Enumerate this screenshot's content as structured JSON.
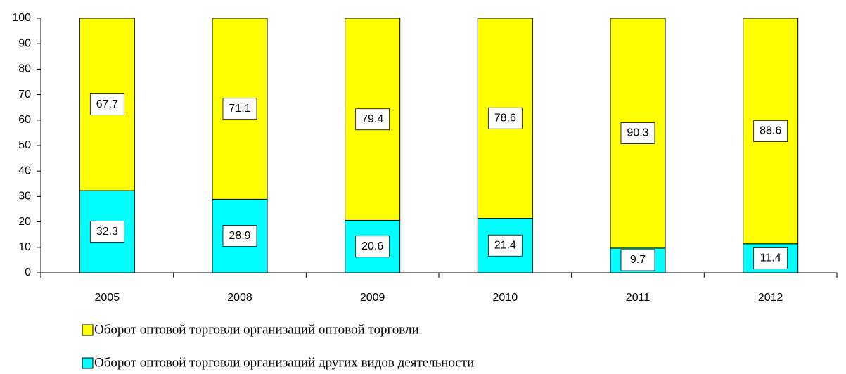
{
  "chart_data": {
    "type": "stacked_bar",
    "categories": [
      "2005",
      "2008",
      "2009",
      "2010",
      "2011",
      "2012"
    ],
    "series": [
      {
        "name": "Оборот оптовой торговли организаций оптовой торговли",
        "color": "#ffff00",
        "values": [
          67.7,
          71.1,
          79.4,
          78.6,
          90.3,
          88.6
        ]
      },
      {
        "name": "Оборот оптовой торговли организаций других видов деятельности",
        "color": "#00ffff",
        "values": [
          32.3,
          28.9,
          20.6,
          21.4,
          9.7,
          11.4
        ]
      }
    ],
    "ylim": [
      0,
      100
    ],
    "yticks": [
      0,
      10,
      20,
      30,
      40,
      50,
      60,
      70,
      80,
      90,
      100
    ]
  }
}
